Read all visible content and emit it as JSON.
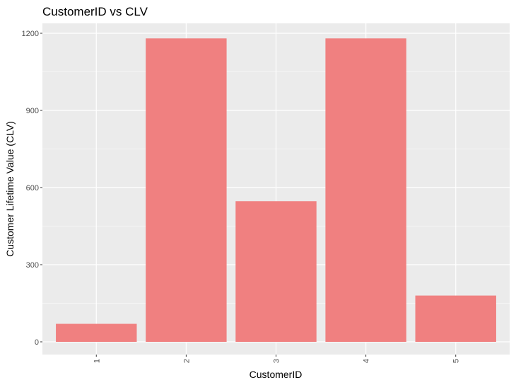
{
  "chart_data": {
    "type": "bar",
    "title": "CustomerID vs CLV",
    "xlabel": "CustomerID",
    "ylabel": "Customer Lifetime Value (CLV)",
    "categories": [
      "1",
      "2",
      "3",
      "4",
      "5"
    ],
    "values": [
      70,
      1180,
      547,
      1180,
      180
    ],
    "ylim": [
      0,
      1200
    ],
    "yticks": [
      "0",
      "300",
      "600",
      "900",
      "1200"
    ],
    "grid": true,
    "legend": "none",
    "x_tick_rotation": "vertical",
    "colors": {
      "bar": "#F08080",
      "panel_background": "#EBEBEB",
      "grid": "#FFFFFF",
      "tick": "#333333"
    }
  }
}
